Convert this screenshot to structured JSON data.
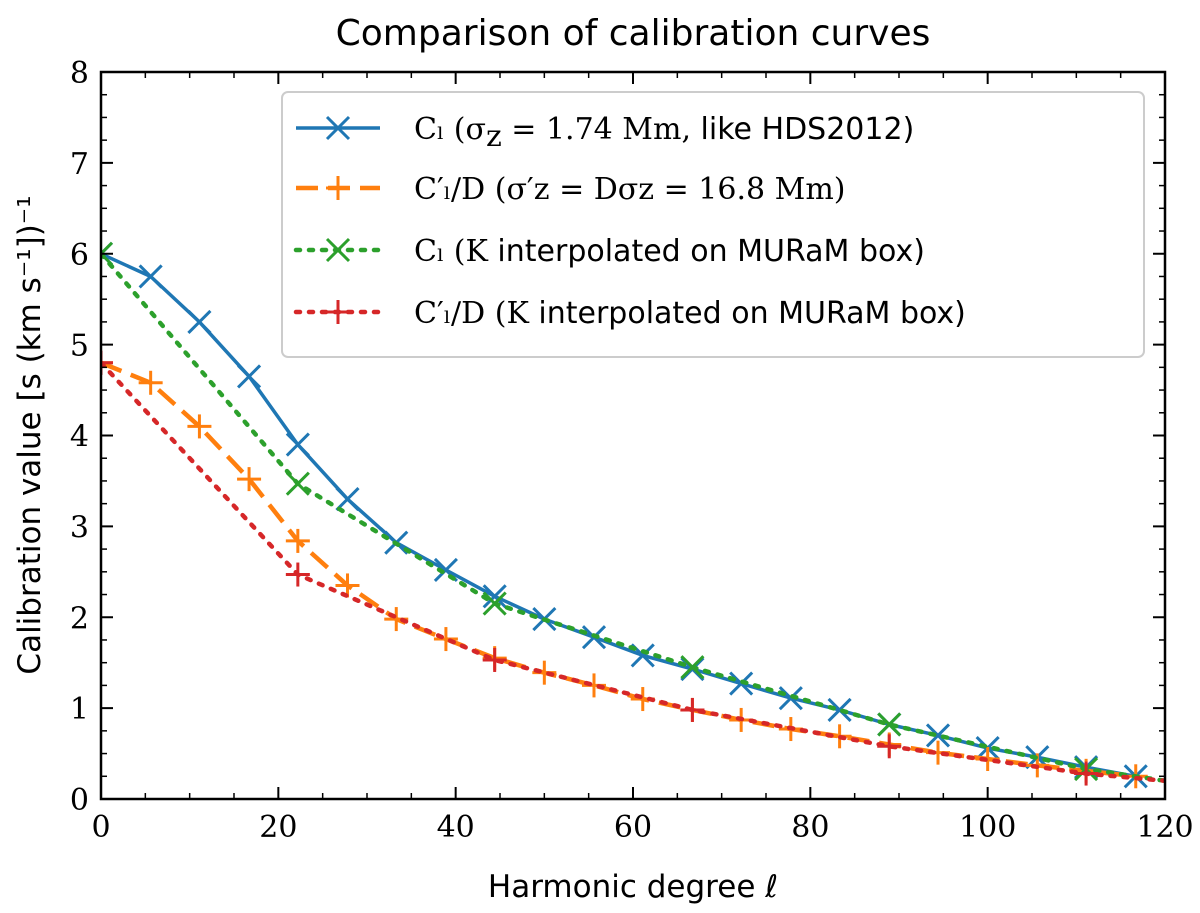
{
  "chart_data": {
    "type": "line",
    "title": "Comparison of calibration curves",
    "xlabel": "Harmonic degree ℓ",
    "ylabel": "Calibration value [s (km s⁻¹])⁻¹",
    "xlim": [
      0,
      120
    ],
    "ylim": [
      0,
      8
    ],
    "xticks": [
      "0",
      "20",
      "40",
      "60",
      "80",
      "100",
      "120"
    ],
    "yticks": [
      "0",
      "1",
      "2",
      "3",
      "4",
      "5",
      "6",
      "7",
      "8"
    ],
    "grid": false,
    "legend_position": "top-right",
    "series": [
      {
        "name": "C_l (σ_z = 1.74 Mm, like HDS2012)",
        "legend": {
          "math_start": "Cₗ (σ",
          "math_sub": "z",
          "eq": " = 1.74 Mm,",
          "sans": " like HDS2012)"
        },
        "color": "#1f77b4",
        "line_style": "solid",
        "marker": "x",
        "x": [
          0,
          5.6,
          11.1,
          16.7,
          22.2,
          27.8,
          33.3,
          38.9,
          44.4,
          50.0,
          55.6,
          61.1,
          66.7,
          72.2,
          77.8,
          83.3,
          88.9,
          94.4,
          100.0,
          105.6,
          111.1,
          116.7
        ],
        "values": [
          6.0,
          5.75,
          5.25,
          4.65,
          3.9,
          3.3,
          2.82,
          2.52,
          2.23,
          1.98,
          1.78,
          1.58,
          1.43,
          1.27,
          1.11,
          0.98,
          0.82,
          0.7,
          0.56,
          0.46,
          0.35,
          0.25
        ]
      },
      {
        "name": "C'_l/D (σ'_z = Dσ_z = 16.8 Mm)",
        "legend": {
          "text": "C′ₗ/D (σ′z = Dσz = 16.8 Mm)"
        },
        "color": "#ff7f0e",
        "line_style": "dashed",
        "marker": "+",
        "x": [
          0,
          5.6,
          11.1,
          16.7,
          22.2,
          27.8,
          33.3,
          38.9,
          44.4,
          50.0,
          55.6,
          61.1,
          66.7,
          72.2,
          77.8,
          83.3,
          88.9,
          94.4,
          100.0,
          105.6,
          111.1,
          116.7
        ],
        "values": [
          4.8,
          4.58,
          4.1,
          3.52,
          2.84,
          2.35,
          1.98,
          1.76,
          1.55,
          1.39,
          1.25,
          1.1,
          0.98,
          0.87,
          0.77,
          0.69,
          0.6,
          0.51,
          0.44,
          0.37,
          0.31,
          0.25
        ]
      },
      {
        "name": "C_l (K interpolated on MURaM box)",
        "legend": {
          "math": "Cₗ (K",
          "sans": " interpolated on MURaM box)"
        },
        "color": "#2ca02c",
        "line_style": "dotted",
        "marker": "x",
        "x": [
          0,
          22.2,
          44.4,
          66.7,
          88.9,
          111.1,
          120
        ],
        "values": [
          6.0,
          3.47,
          2.15,
          1.45,
          0.82,
          0.33,
          0.2
        ]
      },
      {
        "name": "C'_l/D (K interpolated on MURaM box)",
        "legend": {
          "math": "C′ₗ/D (K",
          "sans": " interpolated on MURaM box)"
        },
        "color": "#d62728",
        "line_style": "dotted",
        "marker": "+",
        "x": [
          0,
          22.2,
          44.4,
          66.7,
          88.9,
          111.1,
          120
        ],
        "values": [
          4.8,
          2.47,
          1.53,
          0.98,
          0.58,
          0.28,
          0.2
        ]
      }
    ]
  }
}
